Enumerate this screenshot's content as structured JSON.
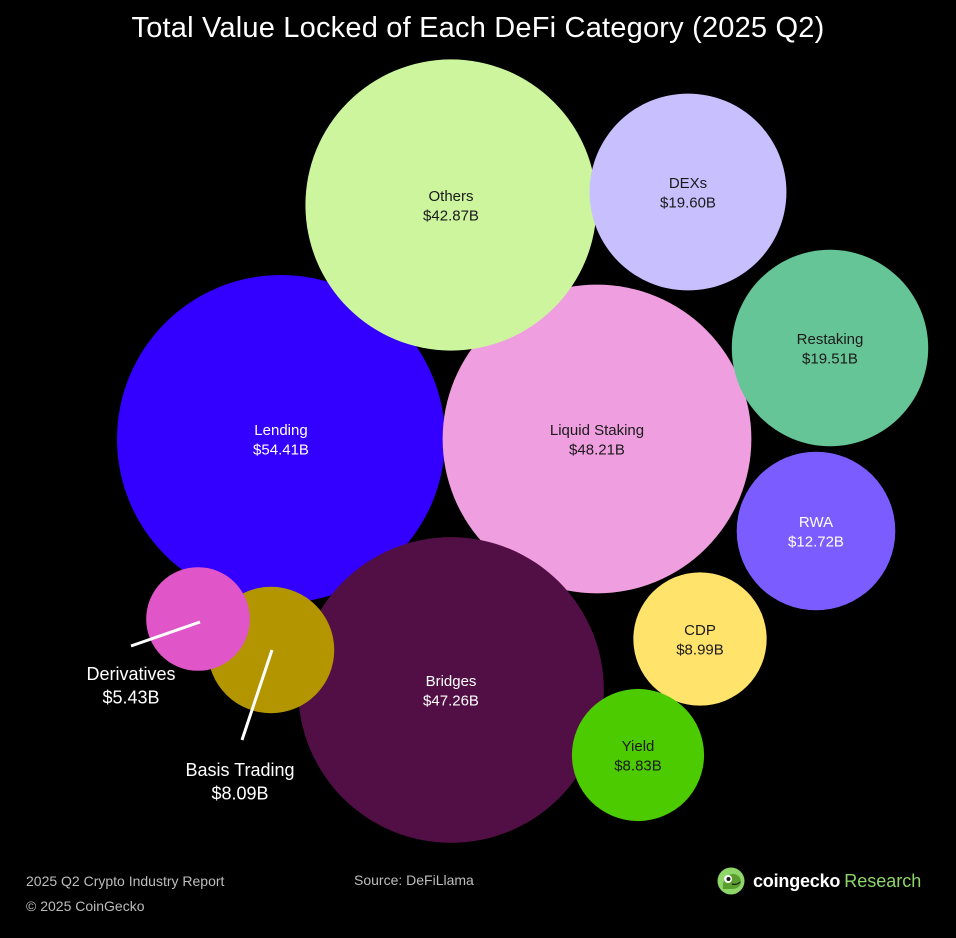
{
  "title": "Total Value Locked of Each DeFi Category (2025 Q2)",
  "chart_data": {
    "type": "bubble",
    "title": "Total Value Locked of Each DeFi Category (2025 Q2)",
    "unit": "USD billions",
    "series": [
      {
        "name": "Lending",
        "label": "$54.41B",
        "value": 54.41,
        "color": "#3300ff",
        "text_color": "#ffffff"
      },
      {
        "name": "Liquid Staking",
        "label": "$48.21B",
        "value": 48.21,
        "color": "#ef9ee0",
        "text_color": "#1a1a1a"
      },
      {
        "name": "Bridges",
        "label": "$47.26B",
        "value": 47.26,
        "color": "#520f45",
        "text_color": "#ffffff"
      },
      {
        "name": "Others",
        "label": "$42.87B",
        "value": 42.87,
        "color": "#ccf59e",
        "text_color": "#1a1a1a"
      },
      {
        "name": "DEXs",
        "label": "$19.60B",
        "value": 19.6,
        "color": "#c8bfff",
        "text_color": "#1a1a1a"
      },
      {
        "name": "Restaking",
        "label": "$19.51B",
        "value": 19.51,
        "color": "#66c596",
        "text_color": "#1a1a1a"
      },
      {
        "name": "RWA",
        "label": "$12.72B",
        "value": 12.72,
        "color": "#7b5cff",
        "text_color": "#ffffff"
      },
      {
        "name": "CDP",
        "label": "$8.99B",
        "value": 8.99,
        "color": "#ffe36b",
        "text_color": "#1a1a1a"
      },
      {
        "name": "Yield",
        "label": "$8.83B",
        "value": 8.83,
        "color": "#4ccc00",
        "text_color": "#1a1a1a"
      },
      {
        "name": "Basis Trading",
        "label": "$8.09B",
        "value": 8.09,
        "color": "#b39500",
        "text_color": "#ffffff",
        "callout": true
      },
      {
        "name": "Derivatives",
        "label": "$5.43B",
        "value": 5.43,
        "color": "#e055c8",
        "text_color": "#ffffff",
        "callout": true
      }
    ]
  },
  "footer": {
    "report": "2025 Q2 Crypto Industry Report",
    "copyright": "© 2025 CoinGecko",
    "source": "Source: DeFiLlama",
    "brand_name": "coingecko",
    "brand_suffix": "Research",
    "brand_color": "#8ed66a"
  }
}
